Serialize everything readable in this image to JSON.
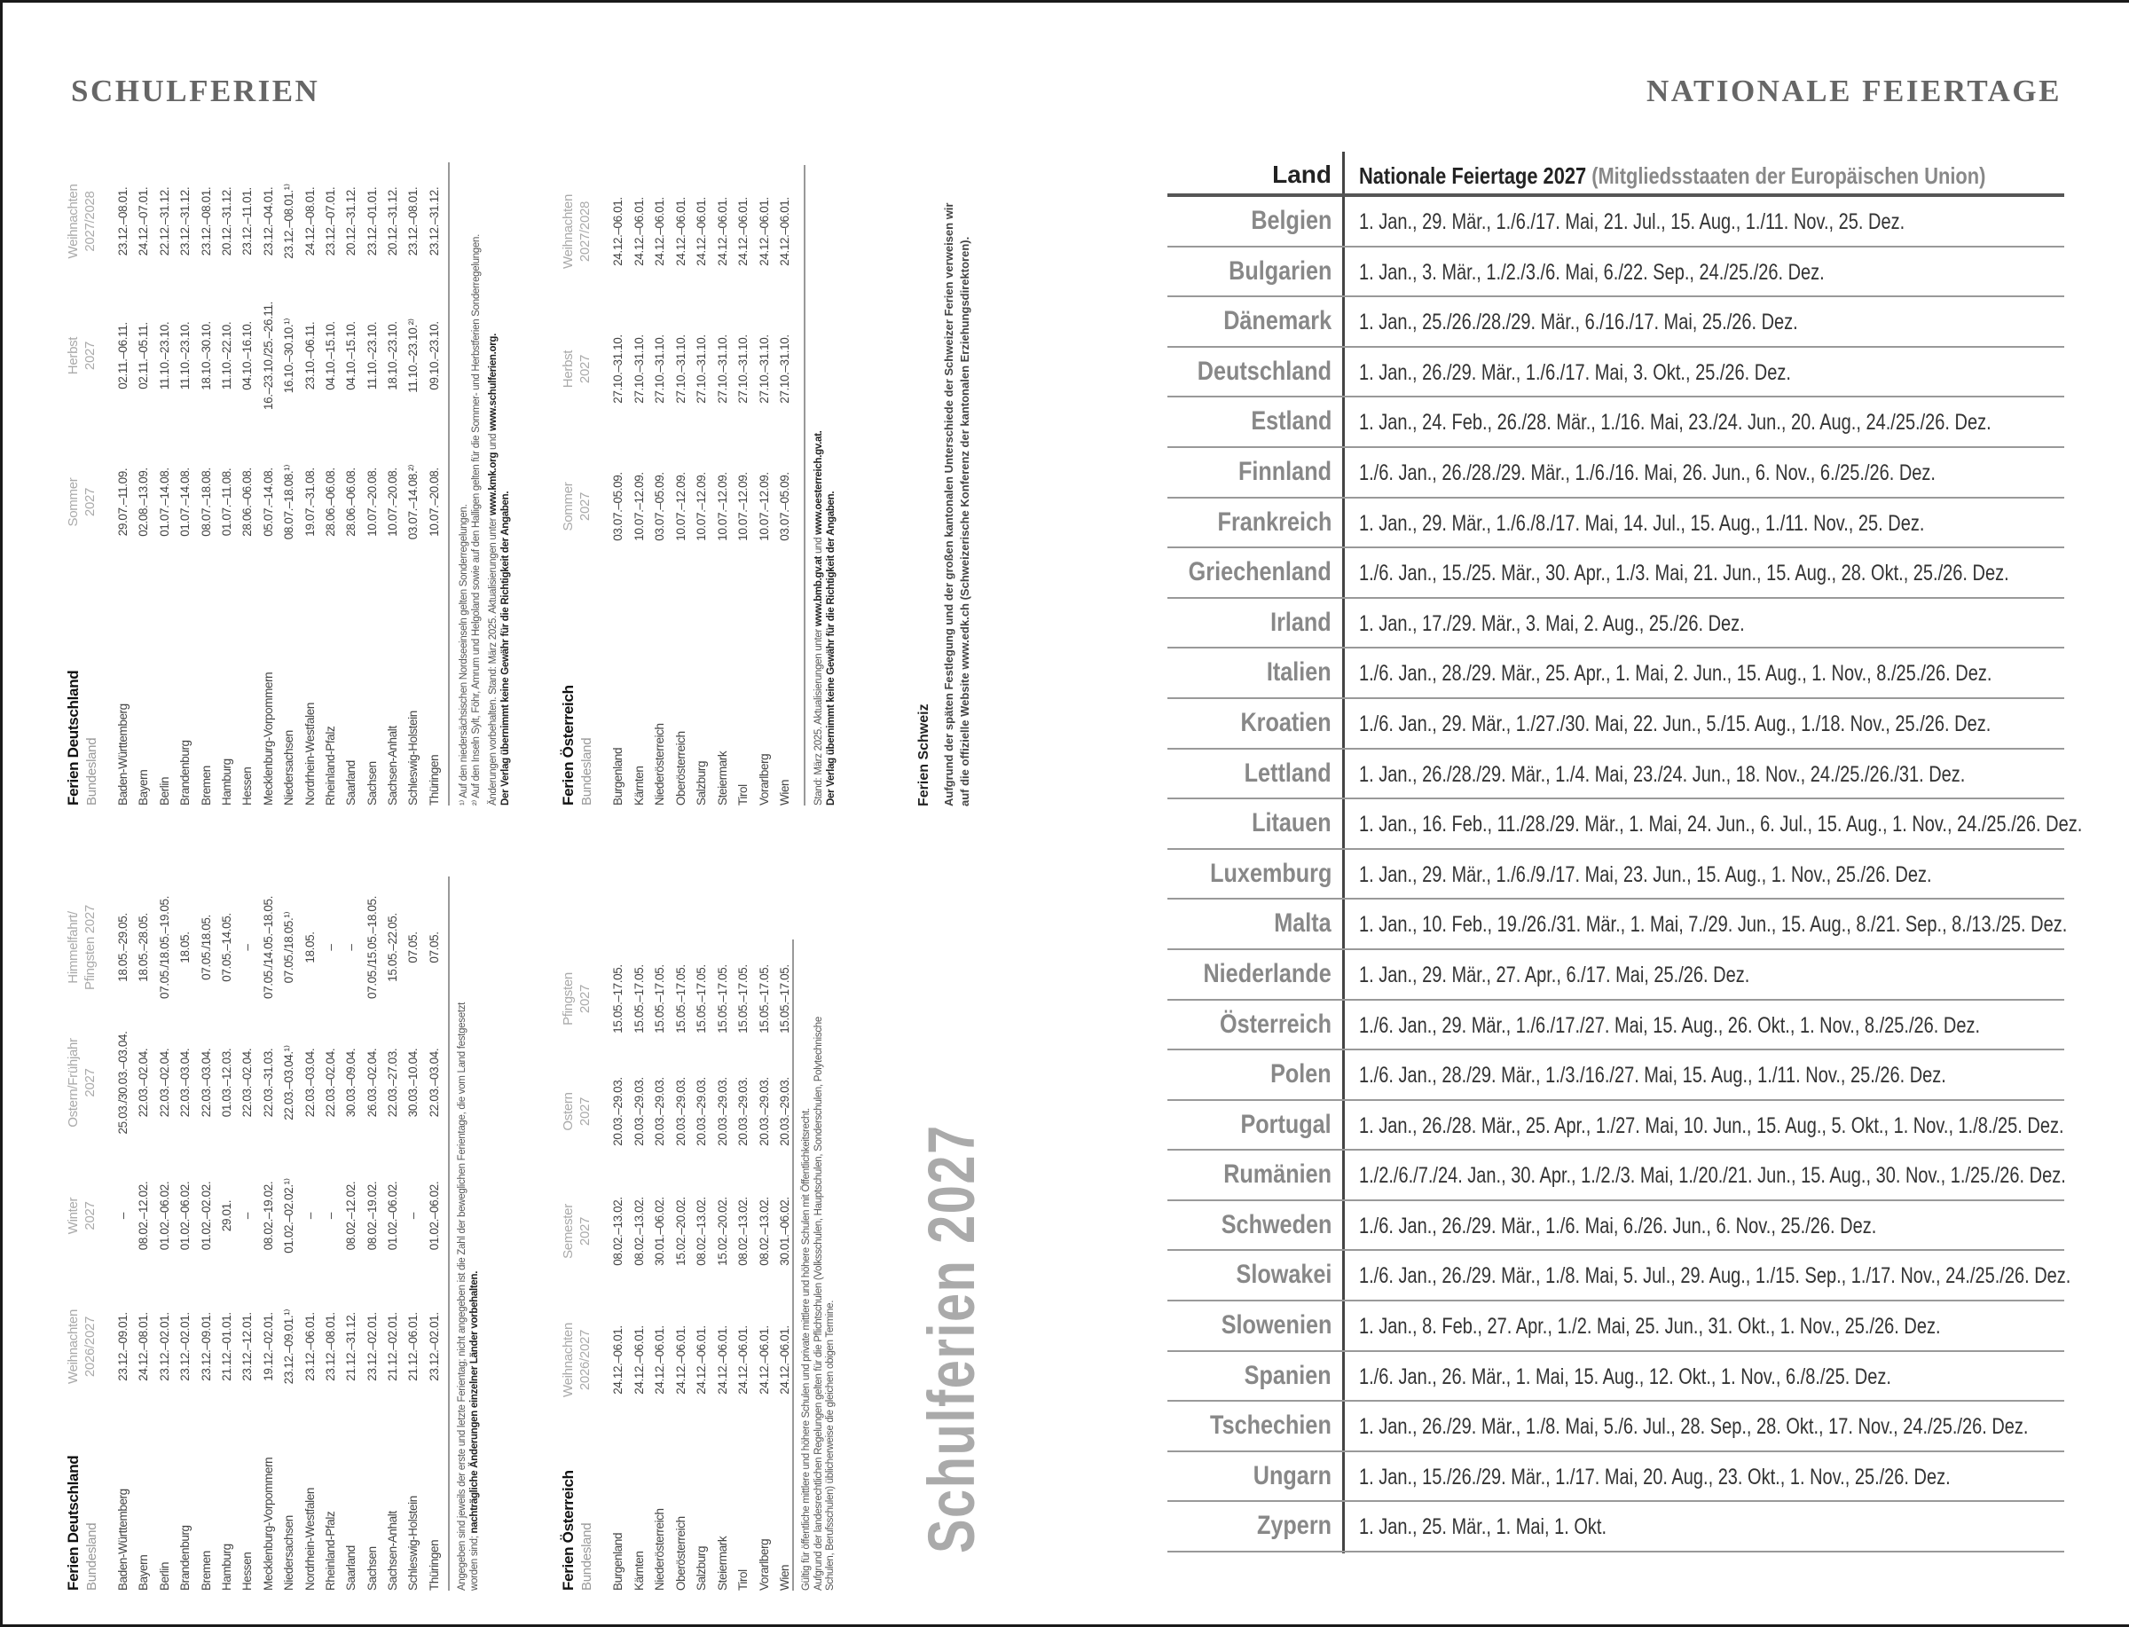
{
  "left_page": {
    "running_head": "SCHULFERIEN",
    "vertical_title": "Schulferien 2027",
    "germany_part1": {
      "title": "Ferien Deutschland",
      "subtitle": "Bundesland",
      "columns": [
        [
          "Weihnachten",
          "2026/2027"
        ],
        [
          "Winter",
          "2027"
        ],
        [
          "Ostern/Frühjahr",
          "2027"
        ],
        [
          "Himmelfahrt/",
          "Pfingsten 2027"
        ]
      ],
      "rows": [
        {
          "name": "Baden-Württemberg",
          "values": [
            "23.12.–09.01.",
            "–",
            "25.03./30.03.–03.04.",
            "18.05.–29.05."
          ]
        },
        {
          "name": "Bayern",
          "values": [
            "24.12.–08.01.",
            "08.02.–12.02.",
            "22.03.–02.04.",
            "18.05.–28.05."
          ]
        },
        {
          "name": "Berlin",
          "values": [
            "23.12.–02.01.",
            "01.02.–06.02.",
            "22.03.–02.04.",
            "07.05./18.05.–19.05."
          ]
        },
        {
          "name": "Brandenburg",
          "values": [
            "23.12.–02.01.",
            "01.02.–06.02.",
            "22.03.–03.04.",
            "18.05."
          ]
        },
        {
          "name": "Bremen",
          "values": [
            "23.12.–09.01.",
            "01.02.–02.02.",
            "22.03.–03.04.",
            "07.05./18.05."
          ]
        },
        {
          "name": "Hamburg",
          "values": [
            "21.12.–01.01.",
            "29.01.",
            "01.03.–12.03.",
            "07.05.–14.05."
          ]
        },
        {
          "name": "Hessen",
          "values": [
            "23.12.–12.01.",
            "–",
            "22.03.–02.04.",
            "–"
          ]
        },
        {
          "name": "Mecklenburg-Vorpommern",
          "values": [
            "19.12.–02.01.",
            "08.02.–19.02.",
            "22.03.–31.03.",
            "07.05./14.05.–18.05."
          ]
        },
        {
          "name": "Niedersachsen",
          "values": [
            "23.12.–09.01.¹⁾",
            "01.02.–02.02.¹⁾",
            "22.03.–03.04.¹⁾",
            "07.05./18.05.¹⁾"
          ]
        },
        {
          "name": "Nordrhein-Westfalen",
          "values": [
            "23.12.–06.01.",
            "–",
            "22.03.–03.04.",
            "18.05."
          ]
        },
        {
          "name": "Rheinland-Pfalz",
          "values": [
            "23.12.–08.01.",
            "–",
            "22.03.–02.04.",
            "–"
          ]
        },
        {
          "name": "Saarland",
          "values": [
            "21.12.–31.12.",
            "08.02.–12.02.",
            "30.03.–09.04.",
            "–"
          ]
        },
        {
          "name": "Sachsen",
          "values": [
            "23.12.–02.01.",
            "08.02.–19.02.",
            "26.03.–02.04.",
            "07.05./15.05.–18.05."
          ]
        },
        {
          "name": "Sachsen-Anhalt",
          "values": [
            "21.12.–02.01.",
            "01.02.–06.02.",
            "22.03.–27.03.",
            "15.05.–22.05."
          ]
        },
        {
          "name": "Schleswig-Holstein",
          "values": [
            "21.12.–06.01.",
            "–",
            "30.03.–10.04.",
            "07.05."
          ]
        },
        {
          "name": "Thüringen",
          "values": [
            "23.12.–02.01.",
            "01.02.–06.02.",
            "22.03.–03.04.",
            "07.05."
          ]
        }
      ],
      "notes": [
        [
          {
            "text": "Angegeben sind jeweils der erste und letzte Ferientag; nicht angegeben ist die Zahl der beweglichen Ferientage, die vom Land festgesetzt",
            "bold": false
          }
        ],
        [
          {
            "text": "worden sind; ",
            "bold": false
          },
          {
            "text": "nachträgliche Änderungen einzelner Länder vorbehalten.",
            "bold": true
          }
        ]
      ]
    },
    "germany_part2": {
      "title": "Ferien Deutschland",
      "subtitle": "Bundesland",
      "columns": [
        [
          "Sommer",
          "2027"
        ],
        [
          "Herbst",
          "2027"
        ],
        [
          "Weihnachten",
          "2027/2028"
        ]
      ],
      "rows": [
        {
          "name": "Baden-Württemberg",
          "values": [
            "29.07.–11.09.",
            "02.11.–06.11.",
            "23.12.–08.01."
          ]
        },
        {
          "name": "Bayern",
          "values": [
            "02.08.–13.09.",
            "02.11.–05.11.",
            "24.12.–07.01."
          ]
        },
        {
          "name": "Berlin",
          "values": [
            "01.07.–14.08.",
            "11.10.–23.10.",
            "22.12.–31.12."
          ]
        },
        {
          "name": "Brandenburg",
          "values": [
            "01.07.–14.08.",
            "11.10.–23.10.",
            "23.12.–31.12."
          ]
        },
        {
          "name": "Bremen",
          "values": [
            "08.07.–18.08.",
            "18.10.–30.10.",
            "23.12.–08.01."
          ]
        },
        {
          "name": "Hamburg",
          "values": [
            "01.07.–11.08.",
            "11.10.–22.10.",
            "20.12.–31.12."
          ]
        },
        {
          "name": "Hessen",
          "values": [
            "28.06.–06.08.",
            "04.10.–16.10.",
            "23.12.–11.01."
          ]
        },
        {
          "name": "Mecklenburg-Vorpommern",
          "values": [
            "05.07.–14.08.",
            "16.–23.10./25.–26.11.",
            "23.12.–04.01."
          ]
        },
        {
          "name": "Niedersachsen",
          "values": [
            "08.07.–18.08.¹⁾",
            "16.10.–30.10.¹⁾",
            "23.12.–08.01.¹⁾"
          ]
        },
        {
          "name": "Nordrhein-Westfalen",
          "values": [
            "19.07.–31.08.",
            "23.10.–06.11.",
            "24.12.–08.01."
          ]
        },
        {
          "name": "Rheinland-Pfalz",
          "values": [
            "28.06.–06.08.",
            "04.10.–15.10.",
            "23.12.–07.01."
          ]
        },
        {
          "name": "Saarland",
          "values": [
            "28.06.–06.08.",
            "04.10.–15.10.",
            "20.12.–31.12."
          ]
        },
        {
          "name": "Sachsen",
          "values": [
            "10.07.–20.08.",
            "11.10.–23.10.",
            "23.12.–01.01."
          ]
        },
        {
          "name": "Sachsen-Anhalt",
          "values": [
            "10.07.–20.08.",
            "18.10.–23.10.",
            "20.12.–31.12."
          ]
        },
        {
          "name": "Schleswig-Holstein",
          "values": [
            "03.07.–14.08.²⁾",
            "11.10.–23.10.²⁾",
            "23.12.–08.01."
          ]
        },
        {
          "name": "Thüringen",
          "values": [
            "10.07.–20.08.",
            "09.10.–23.10.",
            "23.12.–31.12."
          ]
        }
      ],
      "notes": [
        [
          {
            "text": "¹⁾ Auf den niedersächsischen Nordseeinseln gelten Sonderregelungen.",
            "bold": false
          }
        ],
        [
          {
            "text": "²⁾ Auf den Inseln Sylt, Föhr, Amrum und Helgoland sowie auf den Halligen gelten für die Sommer- und Herbstferien Sonderregelungen.",
            "bold": false
          }
        ],
        [
          {
            "text": "Änderungen vorbehalten. Stand: März 2025. Aktualisierungen unter ",
            "bold": false
          },
          {
            "text": "www.kmk.org",
            "bold": true
          },
          {
            "text": " und ",
            "bold": false
          },
          {
            "text": "www.schulferien.org.",
            "bold": true
          }
        ],
        [
          {
            "text": "Der Verlag übernimmt keine Gewähr für die Richtigkeit der Angaben.",
            "bold": true
          }
        ]
      ]
    },
    "austria_part1": {
      "title": "Ferien Österreich",
      "subtitle": "Bundesland",
      "columns": [
        [
          "Weihnachten",
          "2026/2027"
        ],
        [
          "Semester",
          "2027"
        ],
        [
          "Ostern",
          "2027"
        ],
        [
          "Pfingsten",
          "2027"
        ]
      ],
      "rows": [
        {
          "name": "Burgenland",
          "values": [
            "24.12.–06.01.",
            "08.02.–13.02.",
            "20.03.–29.03.",
            "15.05.–17.05."
          ]
        },
        {
          "name": "Kärnten",
          "values": [
            "24.12.–06.01.",
            "08.02.–13.02.",
            "20.03.–29.03.",
            "15.05.–17.05."
          ]
        },
        {
          "name": "Niederösterreich",
          "values": [
            "24.12.–06.01.",
            "30.01.–06.02.",
            "20.03.–29.03.",
            "15.05.–17.05."
          ]
        },
        {
          "name": "Oberösterreich",
          "values": [
            "24.12.–06.01.",
            "15.02.–20.02.",
            "20.03.–29.03.",
            "15.05.–17.05."
          ]
        },
        {
          "name": "Salzburg",
          "values": [
            "24.12.–06.01.",
            "08.02.–13.02.",
            "20.03.–29.03.",
            "15.05.–17.05."
          ]
        },
        {
          "name": "Steiermark",
          "values": [
            "24.12.–06.01.",
            "15.02.–20.02.",
            "20.03.–29.03.",
            "15.05.–17.05."
          ]
        },
        {
          "name": "Tirol",
          "values": [
            "24.12.–06.01.",
            "08.02.–13.02.",
            "20.03.–29.03.",
            "15.05.–17.05."
          ]
        },
        {
          "name": "Vorarlberg",
          "values": [
            "24.12.–06.01.",
            "08.02.–13.02.",
            "20.03.–29.03.",
            "15.05.–17.05."
          ]
        },
        {
          "name": "Wien",
          "values": [
            "24.12.–06.01.",
            "30.01.–06.02.",
            "20.03.–29.03.",
            "15.05.–17.05."
          ]
        }
      ],
      "notes": [
        [
          {
            "text": "Gültig für öffentliche mittlere und höhere Schulen und private mittlere und höhere Schulen mit Öffentlichkeitsrecht.",
            "bold": false
          }
        ],
        [
          {
            "text": "Aufgrund der landesrechtlichen Regelungen gelten für die Pflichtschulen (Volksschulen, Hauptschulen, Sonderschulen, Polytechnische",
            "bold": false
          }
        ],
        [
          {
            "text": "Schulen, Berufsschulen) üblicherweise die gleichen obigen Termine.",
            "bold": false
          }
        ]
      ]
    },
    "austria_part2": {
      "title": "Ferien Österreich",
      "subtitle": "Bundesland",
      "columns": [
        [
          "Sommer",
          "2027"
        ],
        [
          "Herbst",
          "2027"
        ],
        [
          "Weihnachten",
          "2027/2028"
        ]
      ],
      "rows": [
        {
          "name": "Burgenland",
          "values": [
            "03.07.–05.09.",
            "27.10.–31.10.",
            "24.12.–06.01."
          ]
        },
        {
          "name": "Kärnten",
          "values": [
            "10.07.–12.09.",
            "27.10.–31.10.",
            "24.12.–06.01."
          ]
        },
        {
          "name": "Niederösterreich",
          "values": [
            "03.07.–05.09.",
            "27.10.–31.10.",
            "24.12.–06.01."
          ]
        },
        {
          "name": "Oberösterreich",
          "values": [
            "10.07.–12.09.",
            "27.10.–31.10.",
            "24.12.–06.01."
          ]
        },
        {
          "name": "Salzburg",
          "values": [
            "10.07.–12.09.",
            "27.10.–31.10.",
            "24.12.–06.01."
          ]
        },
        {
          "name": "Steiermark",
          "values": [
            "10.07.–12.09.",
            "27.10.–31.10.",
            "24.12.–06.01."
          ]
        },
        {
          "name": "Tirol",
          "values": [
            "10.07.–12.09.",
            "27.10.–31.10.",
            "24.12.–06.01."
          ]
        },
        {
          "name": "Vorarlberg",
          "values": [
            "10.07.–12.09.",
            "27.10.–31.10.",
            "24.12.–06.01."
          ]
        },
        {
          "name": "Wien",
          "values": [
            "03.07.–05.09.",
            "27.10.–31.10.",
            "24.12.–06.01."
          ]
        }
      ],
      "notes": [
        [
          {
            "text": "Stand: März 2025. Aktualisierungen unter ",
            "bold": false
          },
          {
            "text": "www.bmb.gv.at",
            "bold": true
          },
          {
            "text": " und ",
            "bold": false
          },
          {
            "text": "www.oesterreich.gv.at.",
            "bold": true
          }
        ],
        [
          {
            "text": "Der Verlag übernimmt keine Gewähr für die Richtigkeit der Angaben.",
            "bold": true
          }
        ]
      ]
    },
    "switzerland": {
      "title": "Ferien Schweiz",
      "lines": [
        "Aufgrund der späten Festlegung und der großen kantonalen Unterschiede der Schweizer Ferien verweisen wir",
        "auf die offizielle Website www.edk.ch (Schweizerische Konferenz der kantonalen Erziehungsdirektoren)."
      ]
    }
  },
  "right_page": {
    "running_head": "NATIONALE FEIERTAGE",
    "table": {
      "col_country": "Land",
      "col_holidays": "Nationale Feiertage 2027",
      "col_holidays_note": " (Mitgliedsstaaten der Europäischen Union)",
      "rows": [
        {
          "country": "Belgien",
          "dates": "1. Jan., 29. Mär., 1./6./17. Mai, 21. Jul., 15. Aug., 1./11. Nov., 25. Dez."
        },
        {
          "country": "Bulgarien",
          "dates": "1. Jan., 3. Mär., 1./2./3./6. Mai, 6./22. Sep., 24./25./26. Dez."
        },
        {
          "country": "Dänemark",
          "dates": "1. Jan., 25./26./28./29. Mär., 6./16./17. Mai, 25./26. Dez."
        },
        {
          "country": "Deutschland",
          "dates": "1. Jan., 26./29. Mär., 1./6./17. Mai, 3. Okt., 25./26. Dez."
        },
        {
          "country": "Estland",
          "dates": "1. Jan., 24. Feb., 26./28. Mär., 1./16. Mai, 23./24. Jun., 20. Aug., 24./25./26. Dez."
        },
        {
          "country": "Finnland",
          "dates": "1./6. Jan., 26./28./29. Mär., 1./6./16. Mai, 26. Jun., 6. Nov., 6./25./26. Dez."
        },
        {
          "country": "Frankreich",
          "dates": "1. Jan., 29. Mär., 1./6./8./17. Mai, 14. Jul., 15. Aug., 1./11. Nov., 25. Dez."
        },
        {
          "country": "Griechenland",
          "dates": "1./6. Jan., 15./25. Mär., 30. Apr., 1./3. Mai, 21. Jun., 15. Aug., 28. Okt., 25./26. Dez."
        },
        {
          "country": "Irland",
          "dates": "1. Jan., 17./29. Mär., 3. Mai, 2. Aug., 25./26. Dez."
        },
        {
          "country": "Italien",
          "dates": "1./6. Jan., 28./29. Mär., 25. Apr., 1. Mai, 2. Jun., 15. Aug., 1. Nov., 8./25./26. Dez."
        },
        {
          "country": "Kroatien",
          "dates": "1./6. Jan., 29. Mär., 1./27./30. Mai, 22. Jun., 5./15. Aug., 1./18. Nov., 25./26. Dez."
        },
        {
          "country": "Lettland",
          "dates": "1. Jan., 26./28./29. Mär., 1./4. Mai, 23./24. Jun., 18. Nov., 24./25./26./31. Dez."
        },
        {
          "country": "Litauen",
          "dates": "1. Jan., 16. Feb., 11./28./29. Mär., 1. Mai, 24. Jun., 6. Jul., 15. Aug., 1. Nov., 24./25./26. Dez."
        },
        {
          "country": "Luxemburg",
          "dates": "1. Jan., 29. Mär., 1./6./9./17. Mai, 23. Jun., 15. Aug., 1. Nov., 25./26. Dez."
        },
        {
          "country": "Malta",
          "dates": "1. Jan., 10. Feb., 19./26./31. Mär., 1. Mai, 7./29. Jun., 15. Aug., 8./21. Sep., 8./13./25. Dez."
        },
        {
          "country": "Niederlande",
          "dates": "1. Jan., 29. Mär., 27. Apr., 6./17. Mai, 25./26. Dez."
        },
        {
          "country": "Österreich",
          "dates": "1./6. Jan., 29. Mär., 1./6./17./27. Mai, 15. Aug., 26. Okt., 1. Nov., 8./25./26. Dez."
        },
        {
          "country": "Polen",
          "dates": "1./6. Jan., 28./29. Mär., 1./3./16./27. Mai, 15. Aug., 1./11. Nov., 25./26. Dez."
        },
        {
          "country": "Portugal",
          "dates": "1. Jan., 26./28. Mär., 25. Apr., 1./27. Mai, 10. Jun., 15. Aug., 5. Okt., 1. Nov., 1./8./25. Dez."
        },
        {
          "country": "Rumänien",
          "dates": "1./2./6./7./24. Jan., 30. Apr., 1./2./3. Mai, 1./20./21. Jun., 15. Aug., 30. Nov., 1./25./26. Dez."
        },
        {
          "country": "Schweden",
          "dates": "1./6. Jan., 26./29. Mär., 1./6. Mai, 6./26. Jun., 6. Nov., 25./26. Dez."
        },
        {
          "country": "Slowakei",
          "dates": "1./6. Jan., 26./29. Mär., 1./8. Mai, 5. Jul., 29. Aug., 1./15. Sep., 1./17. Nov., 24./25./26. Dez."
        },
        {
          "country": "Slowenien",
          "dates": "1. Jan., 8. Feb., 27. Apr., 1./2. Mai, 25. Jun., 31. Okt., 1. Nov., 25./26. Dez."
        },
        {
          "country": "Spanien",
          "dates": "1./6. Jan., 26. Mär., 1. Mai, 15. Aug., 12. Okt., 1. Nov., 6./8./25. Dez."
        },
        {
          "country": "Tschechien",
          "dates": "1. Jan., 26./29. Mär., 1./8. Mai, 5./6. Jul., 28. Sep., 28. Okt., 17. Nov., 24./25./26. Dez."
        },
        {
          "country": "Ungarn",
          "dates": "1. Jan., 15./26./29. Mär., 1./17. Mai, 20. Aug., 23. Okt., 1. Nov., 25./26. Dez."
        },
        {
          "country": "Zypern",
          "dates": "1. Jan., 25. Mär., 1. Mai, 1. Okt."
        }
      ]
    }
  },
  "colors": {
    "heading_gray": "#666666",
    "country_gray": "#888888",
    "text": "#333333",
    "rule": "#999999",
    "frame": "#1a1a1a"
  }
}
